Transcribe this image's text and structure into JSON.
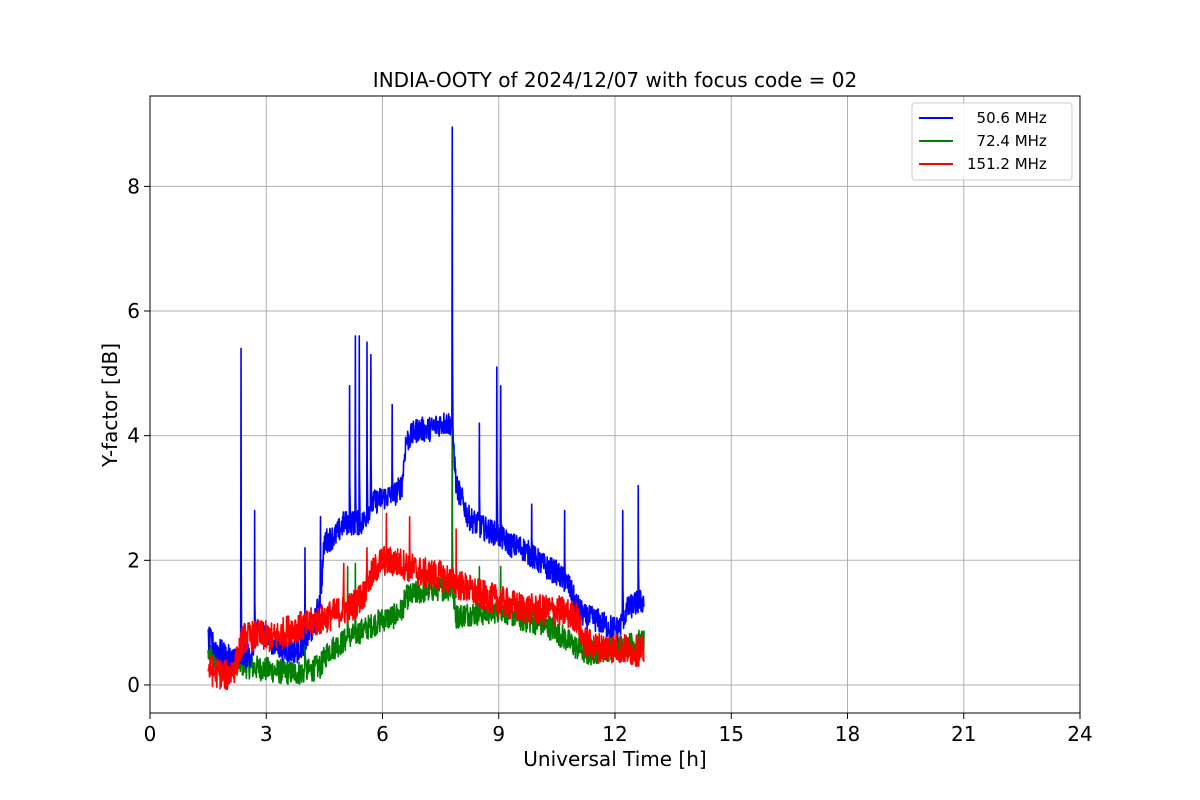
{
  "chart_data": {
    "type": "line",
    "title": "INDIA-OOTY of 2024/12/07 with focus code = 02",
    "xlabel": "Universal Time [h]",
    "ylabel": "Y-factor [dB]",
    "xlim": [
      0,
      24
    ],
    "ylim": [
      -0.45,
      9.45
    ],
    "xticks": [
      0,
      3,
      6,
      9,
      12,
      15,
      18,
      21,
      24
    ],
    "xtick_labels": [
      "0",
      "3",
      "6",
      "9",
      "12",
      "15",
      "18",
      "21",
      "24"
    ],
    "yticks": [
      0,
      2,
      4,
      6,
      8
    ],
    "ytick_labels": [
      "0",
      "2",
      "4",
      "6",
      "8"
    ],
    "grid": true,
    "legend_position": "top-right",
    "noise_amplitude": [
      0.2,
      0.2,
      0.25
    ],
    "series": [
      {
        "name": "  50.6 MHz",
        "color": "#0000ff",
        "points": [
          [
            1.5,
            0.75
          ],
          [
            1.7,
            0.6
          ],
          [
            2.0,
            0.45
          ],
          [
            2.3,
            0.4
          ],
          [
            2.6,
            0.5
          ],
          [
            2.8,
            0.9
          ],
          [
            3.0,
            0.8
          ],
          [
            3.2,
            0.65
          ],
          [
            3.5,
            0.55
          ],
          [
            3.8,
            0.55
          ],
          [
            4.0,
            0.7
          ],
          [
            4.2,
            0.9
          ],
          [
            4.4,
            1.4
          ],
          [
            4.5,
            2.3
          ],
          [
            4.8,
            2.4
          ],
          [
            5.0,
            2.6
          ],
          [
            5.3,
            2.6
          ],
          [
            5.5,
            2.6
          ],
          [
            5.7,
            2.9
          ],
          [
            6.0,
            3.0
          ],
          [
            6.3,
            3.05
          ],
          [
            6.5,
            3.2
          ],
          [
            6.6,
            3.9
          ],
          [
            6.9,
            4.1
          ],
          [
            7.2,
            4.1
          ],
          [
            7.5,
            4.2
          ],
          [
            7.8,
            4.2
          ],
          [
            7.9,
            3.2
          ],
          [
            8.1,
            2.9
          ],
          [
            8.2,
            2.7
          ],
          [
            8.5,
            2.55
          ],
          [
            9.0,
            2.4
          ],
          [
            9.3,
            2.25
          ],
          [
            9.6,
            2.2
          ],
          [
            9.9,
            2.05
          ],
          [
            10.2,
            1.9
          ],
          [
            10.5,
            1.8
          ],
          [
            10.8,
            1.6
          ],
          [
            11.0,
            1.3
          ],
          [
            11.2,
            1.1
          ],
          [
            11.5,
            1.05
          ],
          [
            11.8,
            0.95
          ],
          [
            12.1,
            0.9
          ],
          [
            12.3,
            1.2
          ],
          [
            12.5,
            1.3
          ],
          [
            12.75,
            1.35
          ]
        ],
        "spikes": [
          [
            2.35,
            5.4
          ],
          [
            2.7,
            2.8
          ],
          [
            4.0,
            2.2
          ],
          [
            4.4,
            2.7
          ],
          [
            5.15,
            4.8
          ],
          [
            5.3,
            5.6
          ],
          [
            5.4,
            5.6
          ],
          [
            5.6,
            5.5
          ],
          [
            5.7,
            5.3
          ],
          [
            6.25,
            4.5
          ],
          [
            7.8,
            8.95
          ],
          [
            8.5,
            4.2
          ],
          [
            8.95,
            5.1
          ],
          [
            9.05,
            4.8
          ],
          [
            9.85,
            2.9
          ],
          [
            10.7,
            2.8
          ],
          [
            12.2,
            2.8
          ],
          [
            12.6,
            3.2
          ]
        ]
      },
      {
        "name": "  72.4 MHz",
        "color": "#008000",
        "points": [
          [
            1.5,
            0.5
          ],
          [
            1.8,
            0.4
          ],
          [
            2.0,
            0.35
          ],
          [
            2.3,
            0.35
          ],
          [
            2.5,
            0.3
          ],
          [
            3.0,
            0.25
          ],
          [
            3.5,
            0.2
          ],
          [
            4.0,
            0.2
          ],
          [
            4.4,
            0.3
          ],
          [
            4.6,
            0.55
          ],
          [
            5.0,
            0.7
          ],
          [
            5.4,
            0.85
          ],
          [
            5.7,
            0.95
          ],
          [
            6.0,
            1.05
          ],
          [
            6.3,
            1.1
          ],
          [
            6.5,
            1.2
          ],
          [
            6.6,
            1.4
          ],
          [
            7.0,
            1.5
          ],
          [
            7.5,
            1.55
          ],
          [
            7.8,
            1.55
          ],
          [
            7.9,
            1.1
          ],
          [
            8.3,
            1.15
          ],
          [
            8.6,
            1.15
          ],
          [
            9.0,
            1.2
          ],
          [
            9.3,
            1.15
          ],
          [
            9.6,
            1.05
          ],
          [
            10.0,
            1.0
          ],
          [
            10.4,
            0.9
          ],
          [
            10.7,
            0.75
          ],
          [
            11.0,
            0.6
          ],
          [
            11.3,
            0.5
          ],
          [
            11.6,
            0.55
          ],
          [
            12.0,
            0.6
          ],
          [
            12.4,
            0.65
          ],
          [
            12.75,
            0.7
          ]
        ],
        "spikes": [
          [
            2.35,
            1.95
          ],
          [
            4.0,
            1.1
          ],
          [
            5.1,
            1.9
          ],
          [
            5.3,
            1.95
          ],
          [
            7.8,
            4.6
          ],
          [
            8.5,
            1.9
          ],
          [
            9.05,
            1.9
          ],
          [
            11.1,
            1.2
          ]
        ]
      },
      {
        "name": "151.2 MHz",
        "color": "#ff0000",
        "points": [
          [
            1.5,
            0.25
          ],
          [
            1.7,
            0.2
          ],
          [
            2.0,
            0.15
          ],
          [
            2.2,
            0.3
          ],
          [
            2.4,
            0.75
          ],
          [
            2.8,
            0.8
          ],
          [
            3.2,
            0.75
          ],
          [
            3.6,
            0.9
          ],
          [
            4.0,
            0.95
          ],
          [
            4.4,
            1.05
          ],
          [
            4.8,
            1.15
          ],
          [
            5.2,
            1.25
          ],
          [
            5.5,
            1.45
          ],
          [
            5.8,
            1.85
          ],
          [
            6.0,
            2.0
          ],
          [
            6.5,
            1.95
          ],
          [
            7.0,
            1.8
          ],
          [
            7.5,
            1.75
          ],
          [
            8.0,
            1.6
          ],
          [
            8.5,
            1.45
          ],
          [
            9.0,
            1.35
          ],
          [
            9.5,
            1.25
          ],
          [
            10.0,
            1.2
          ],
          [
            10.5,
            1.2
          ],
          [
            11.0,
            1.1
          ],
          [
            11.2,
            0.7
          ],
          [
            11.5,
            0.6
          ],
          [
            12.0,
            0.6
          ],
          [
            12.4,
            0.55
          ],
          [
            12.75,
            0.55
          ]
        ],
        "spikes": [
          [
            5.0,
            1.95
          ],
          [
            5.6,
            2.2
          ],
          [
            6.1,
            2.75
          ],
          [
            6.7,
            2.7
          ],
          [
            7.9,
            2.5
          ]
        ]
      }
    ]
  }
}
